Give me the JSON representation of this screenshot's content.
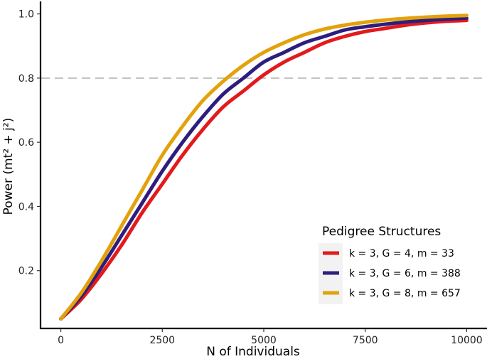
{
  "chart_data": {
    "type": "line",
    "title": "",
    "xlabel": "N of Individuals",
    "ylabel": "Power (mt² + j²)",
    "xlim": [
      -500,
      10500
    ],
    "ylim": [
      0.02,
      1.03
    ],
    "xticks": [
      0,
      2500,
      5000,
      7500,
      10000
    ],
    "xtick_labels": [
      "0",
      "2500",
      "5000",
      "7500",
      "10000"
    ],
    "yticks": [
      0.2,
      0.4,
      0.6,
      0.8,
      1.0
    ],
    "ytick_labels": [
      "0.2",
      "0.4",
      "0.6",
      "0.8",
      "1.0"
    ],
    "grid": false,
    "reference_line": {
      "y": 0.8,
      "style": "dashed",
      "color": "#bfbfbf"
    },
    "legend": {
      "title": "Pedigree Structures",
      "position": "bottom-right"
    },
    "x": [
      0,
      500,
      1000,
      1500,
      2000,
      2500,
      3000,
      3500,
      4000,
      4500,
      5000,
      5500,
      6000,
      6500,
      7000,
      7500,
      8000,
      8500,
      9000,
      9500,
      10000
    ],
    "series": [
      {
        "name": "k = 3, G = 4, m = 33",
        "color": "#e31a1c",
        "values": [
          0.05,
          0.11,
          0.19,
          0.28,
          0.38,
          0.47,
          0.56,
          0.64,
          0.71,
          0.76,
          0.81,
          0.85,
          0.88,
          0.91,
          0.93,
          0.945,
          0.955,
          0.965,
          0.972,
          0.977,
          0.98
        ]
      },
      {
        "name": "k = 3, G = 6, m = 388",
        "color": "#2d1e7e",
        "values": [
          0.05,
          0.12,
          0.21,
          0.31,
          0.41,
          0.51,
          0.6,
          0.68,
          0.75,
          0.8,
          0.85,
          0.88,
          0.91,
          0.93,
          0.95,
          0.96,
          0.968,
          0.975,
          0.98,
          0.984,
          0.987
        ]
      },
      {
        "name": "k = 3, G = 8, m = 657",
        "color": "#e3a20a",
        "values": [
          0.05,
          0.13,
          0.23,
          0.34,
          0.45,
          0.56,
          0.65,
          0.73,
          0.79,
          0.84,
          0.88,
          0.91,
          0.935,
          0.953,
          0.965,
          0.974,
          0.981,
          0.986,
          0.99,
          0.993,
          0.995
        ]
      }
    ]
  }
}
